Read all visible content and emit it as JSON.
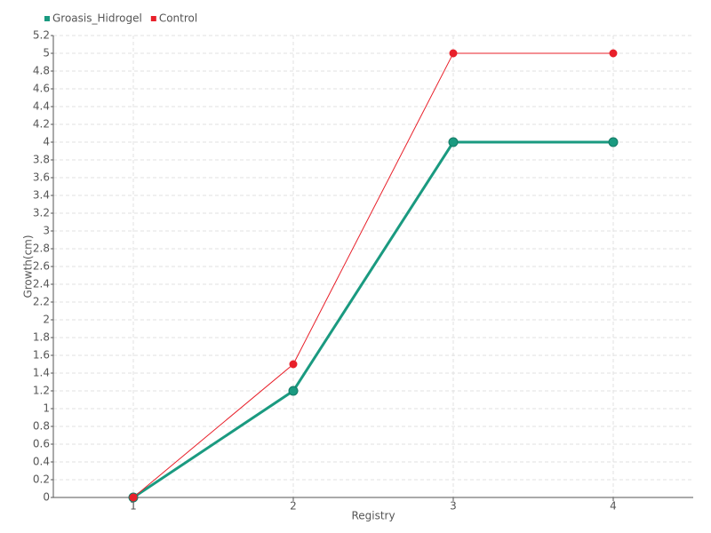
{
  "chart_data": {
    "type": "line",
    "x_label": "Registry",
    "y_label": "Growth(cm)",
    "categories": [
      "1",
      "2",
      "3",
      "4"
    ],
    "series": [
      {
        "name": "Groasis_Hidrogel",
        "color": "#1a9a80",
        "values": [
          0,
          1.2,
          4,
          4
        ]
      },
      {
        "name": "Control",
        "color": "#e8202a",
        "values": [
          0,
          1.5,
          5,
          5
        ]
      }
    ],
    "ylim": [
      0,
      5.2
    ],
    "yticks": [
      0,
      0.2,
      0.4,
      0.6,
      0.8,
      1,
      1.2,
      1.4,
      1.6,
      1.8,
      2,
      2.2,
      2.4,
      2.6,
      2.8,
      3,
      3.2,
      3.4,
      3.6,
      3.8,
      4,
      4.2,
      4.4,
      4.6,
      4.8,
      5,
      5.2
    ],
    "grid": true,
    "legend": "top-left"
  }
}
